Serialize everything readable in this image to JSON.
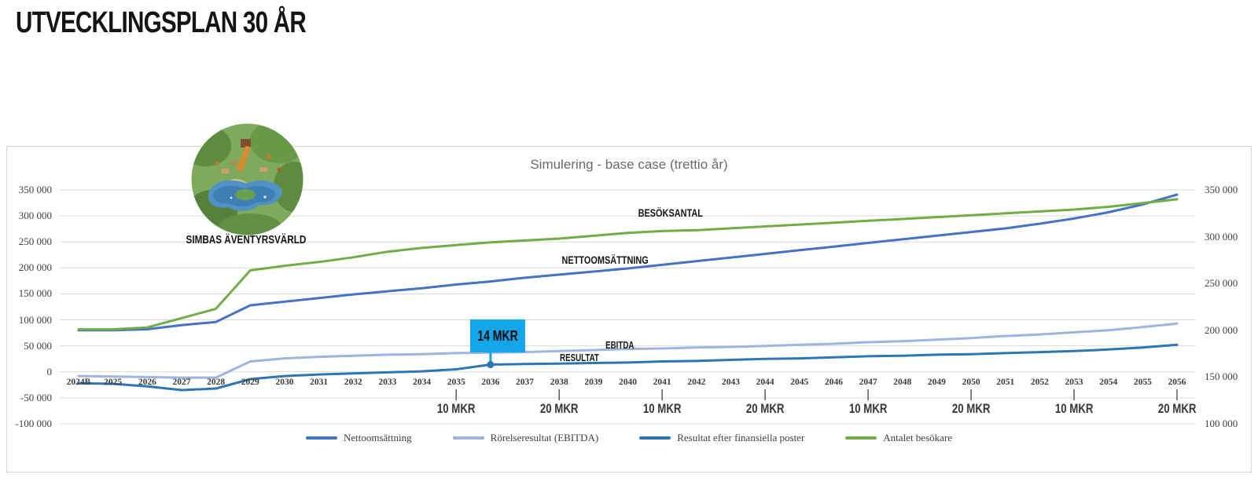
{
  "page": {
    "title": "UTVECKLINGSPLAN 30 ÅR"
  },
  "park": {
    "label": "SIMBAS ÄVENTYRSVÄRLD"
  },
  "chart_data": {
    "type": "line",
    "title": "Simulering - base case (trettio år)",
    "grid": true,
    "legend_position": "bottom",
    "categories": [
      "2024B",
      "2025",
      "2026",
      "2027",
      "2028",
      "2029",
      "2030",
      "2031",
      "2032",
      "2033",
      "2034",
      "2035",
      "2036",
      "2037",
      "2038",
      "2039",
      "2040",
      "2041",
      "2042",
      "2043",
      "2044",
      "2045",
      "2046",
      "2047",
      "2048",
      "2049",
      "2050",
      "2051",
      "2052",
      "2053",
      "2054",
      "2055",
      "2056"
    ],
    "left_axis": {
      "min": -100000,
      "max": 350000,
      "tick_step": 50000,
      "tick_labels": [
        "350 000",
        "300 000",
        "250 000",
        "200 000",
        "150 000",
        "100 000",
        "50 000",
        "0",
        "-50 000",
        "-100 000"
      ]
    },
    "right_axis": {
      "min": 100000,
      "max": 350000,
      "tick_step": 50000,
      "tick_labels": [
        "350 000",
        "300 000",
        "250 000",
        "200 000",
        "150 000",
        "100 000"
      ]
    },
    "series": [
      {
        "name": "Nettoomsättning",
        "color": "#4472c4",
        "axis": "left",
        "values": [
          80000,
          80000,
          82000,
          90000,
          96000,
          128000,
          135000,
          142000,
          149000,
          155000,
          161000,
          168000,
          174000,
          181000,
          187000,
          193000,
          199000,
          206000,
          213000,
          220000,
          227000,
          234000,
          241000,
          248000,
          255000,
          262000,
          269000,
          276000,
          285000,
          295000,
          307000,
          322000,
          341000
        ]
      },
      {
        "name": "Rörelseresultat (EBITDA)",
        "color": "#9fb5e1",
        "axis": "left",
        "values": [
          -8000,
          -9000,
          -10000,
          -11000,
          -11000,
          20000,
          26000,
          29000,
          31000,
          33000,
          34000,
          36000,
          37000,
          38000,
          40000,
          42000,
          44000,
          45000,
          47000,
          48000,
          50000,
          52000,
          54000,
          57000,
          59000,
          62000,
          65000,
          69000,
          72000,
          76000,
          80000,
          86000,
          93000
        ]
      },
      {
        "name": "Resultat efter finansiella poster",
        "color": "#2e75b6",
        "axis": "left",
        "values": [
          -22000,
          -23000,
          -28000,
          -35000,
          -32000,
          -14000,
          -8000,
          -5000,
          -3000,
          -1000,
          1000,
          5000,
          14000,
          15000,
          16000,
          17000,
          18000,
          20000,
          21000,
          23000,
          25000,
          26000,
          28000,
          30000,
          31000,
          33000,
          34000,
          36000,
          38000,
          40000,
          43000,
          47000,
          52000
        ]
      },
      {
        "name": "Antalet besökare",
        "color": "#70ad47",
        "axis": "right",
        "values": [
          201000,
          201000,
          203000,
          213000,
          223000,
          264000,
          269000,
          273000,
          278000,
          284000,
          288000,
          291000,
          294000,
          296000,
          298000,
          301000,
          304000,
          306000,
          307000,
          309000,
          311000,
          313000,
          315000,
          317000,
          319000,
          321000,
          323000,
          325000,
          327000,
          329000,
          332000,
          336000,
          340000
        ]
      }
    ],
    "annotations": [
      {
        "text": "BESÖKSANTAL"
      },
      {
        "text": "NETTOOMSÄTTNING"
      },
      {
        "text": "EBITDA"
      },
      {
        "text": "RESULTAT"
      }
    ],
    "milestones": [
      {
        "year": "2035",
        "label": "10 MKR"
      },
      {
        "year": "2038",
        "label": "20 MKR"
      },
      {
        "year": "2041",
        "label": "10 MKR"
      },
      {
        "year": "2044",
        "label": "20 MKR"
      },
      {
        "year": "2047",
        "label": "10 MKR"
      },
      {
        "year": "2050",
        "label": "20 MKR"
      },
      {
        "year": "2053",
        "label": "10 MKR"
      },
      {
        "year": "2056",
        "label": "20 MKR"
      }
    ],
    "callout": {
      "label": "14 MKR",
      "year": "2036",
      "value": 14000,
      "series": "Resultat efter finansiella poster",
      "box_color": "#14a5ea"
    }
  }
}
